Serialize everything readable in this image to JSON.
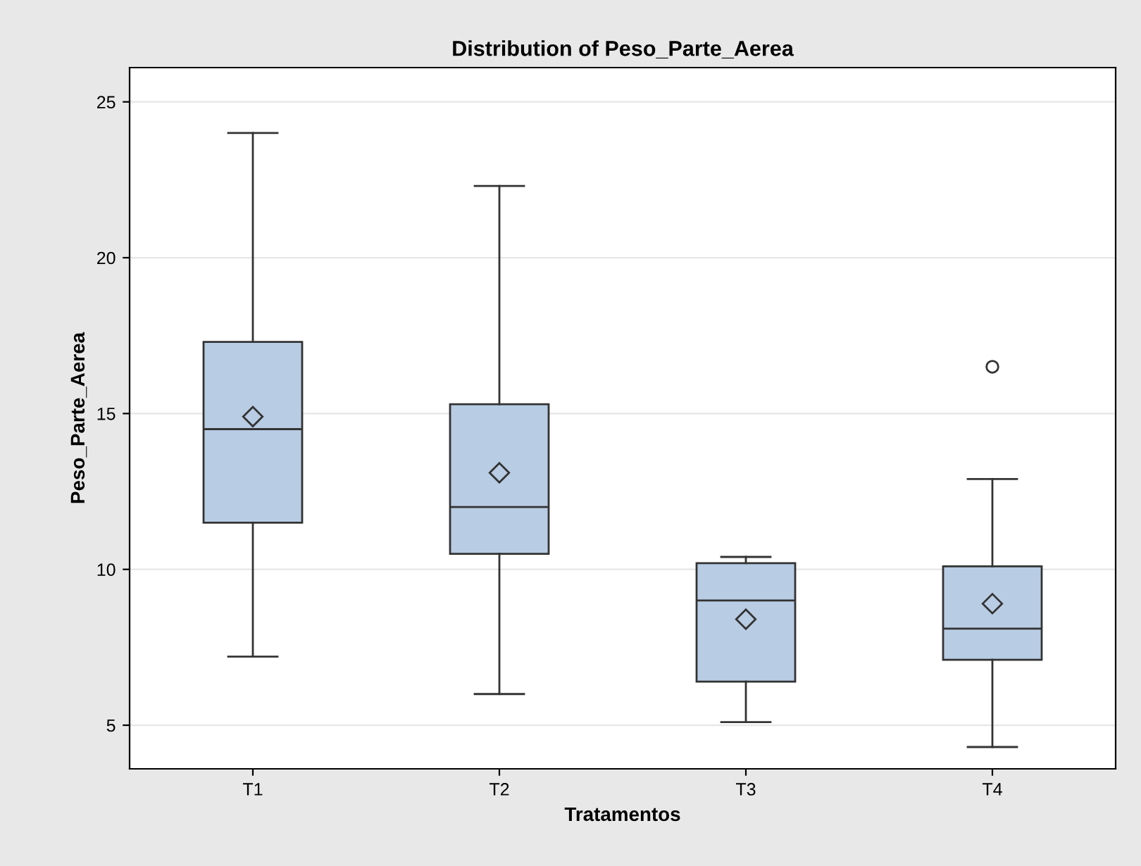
{
  "chart_data": {
    "type": "box",
    "title": "Distribution of Peso_Parte_Aerea",
    "xlabel": "Tratamentos",
    "ylabel": "Peso_Parte_Aerea",
    "categories": [
      "T1",
      "T2",
      "T3",
      "T4"
    ],
    "color": "#b8cce4",
    "boxes": [
      {
        "low": 7.2,
        "q1": 11.5,
        "median": 14.5,
        "q3": 17.3,
        "high": 24.0,
        "mean": 14.9
      },
      {
        "low": 6.0,
        "q1": 10.5,
        "median": 12.0,
        "q3": 15.3,
        "high": 22.3,
        "mean": 13.1
      },
      {
        "low": 5.1,
        "q1": 6.4,
        "median": 9.0,
        "q3": 10.2,
        "high": 10.4,
        "mean": 8.4
      },
      {
        "low": 4.3,
        "q1": 7.1,
        "median": 8.1,
        "q3": 10.1,
        "high": 12.9,
        "mean": 8.9,
        "outliers": [
          16.5
        ]
      }
    ],
    "ylim": [
      3.6,
      26.1
    ],
    "yticks": [
      5,
      10,
      15,
      20,
      25
    ],
    "grid": "y"
  }
}
